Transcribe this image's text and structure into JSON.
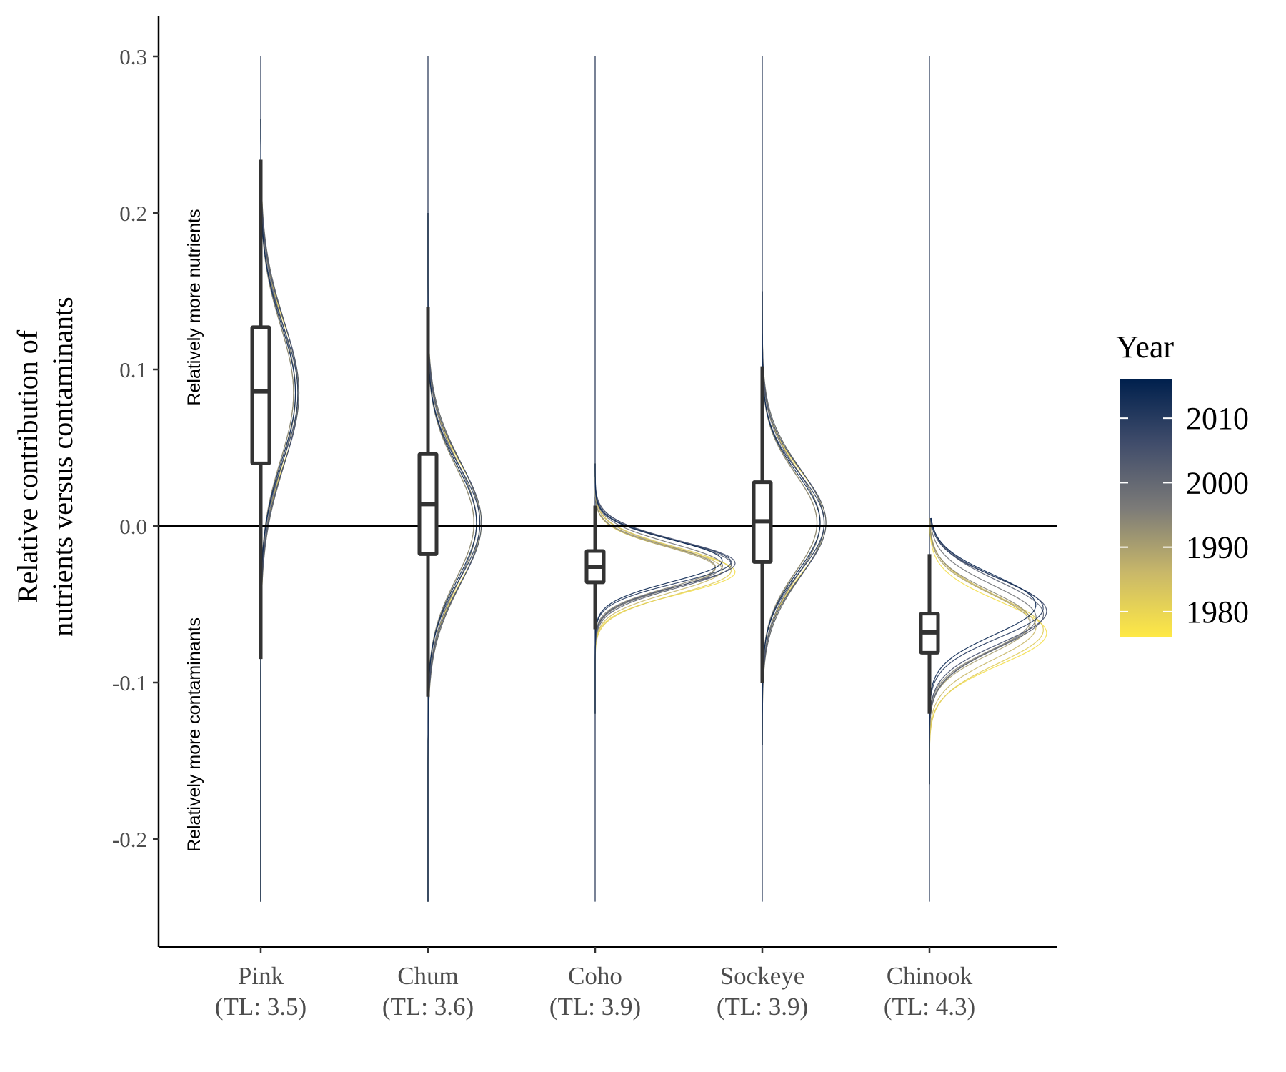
{
  "chart_data": {
    "type": "violin",
    "title": "",
    "xlabel": "",
    "ylabel_lines": [
      "Relative contribution of",
      "nutrients versus contaminants"
    ],
    "ylim": [
      -0.26,
      0.325
    ],
    "yticks": [
      -0.2,
      -0.1,
      0.0,
      0.1,
      0.2,
      0.3
    ],
    "ytick_labels": [
      "-0.2",
      "-0.1",
      "0.0",
      "0.1",
      "0.2",
      "0.3"
    ],
    "reference_line_y": 0.0,
    "grid": false,
    "annotations": {
      "upper": "Relatively more nutrients",
      "lower": "Relatively more contaminants"
    },
    "categories": [
      {
        "name": "Pink",
        "tl": "(TL: 3.5)",
        "box": {
          "whisker_low": -0.085,
          "q1": 0.04,
          "median": 0.086,
          "q3": 0.127,
          "whisker_high": 0.234
        },
        "density": {
          "mean": 0.085,
          "sd": 0.045,
          "amp": 0.3,
          "drift": 0.0,
          "span": [
            -0.24,
            0.26
          ]
        }
      },
      {
        "name": "Chum",
        "tl": "(TL: 3.6)",
        "box": {
          "whisker_low": -0.109,
          "q1": -0.018,
          "median": 0.014,
          "q3": 0.046,
          "whisker_high": 0.14
        },
        "density": {
          "mean": 0.002,
          "sd": 0.038,
          "amp": 0.42,
          "drift": 0.0,
          "span": [
            -0.24,
            0.2
          ]
        }
      },
      {
        "name": "Coho",
        "tl": "(TL: 3.9)",
        "box": {
          "whisker_low": -0.066,
          "q1": -0.036,
          "median": -0.026,
          "q3": -0.016,
          "whisker_high": 0.013
        },
        "density": {
          "mean": -0.026,
          "sd": 0.014,
          "amp": 1.1,
          "drift": 0.004,
          "span": [
            -0.12,
            0.04
          ]
        }
      },
      {
        "name": "Sockeye",
        "tl": "(TL: 3.9)",
        "box": {
          "whisker_low": -0.1,
          "q1": -0.023,
          "median": 0.003,
          "q3": 0.028,
          "whisker_high": 0.102
        },
        "density": {
          "mean": 0.002,
          "sd": 0.033,
          "amp": 0.5,
          "drift": 0.0,
          "span": [
            -0.14,
            0.15
          ]
        }
      },
      {
        "name": "Chinook",
        "tl": "(TL: 4.3)",
        "box": {
          "whisker_low": -0.12,
          "q1": -0.081,
          "median": -0.068,
          "q3": -0.056,
          "whisker_high": -0.018
        },
        "density": {
          "mean": -0.06,
          "sd": 0.02,
          "amp": 0.92,
          "drift": 0.01,
          "span": [
            -0.165,
            0.005
          ]
        }
      }
    ],
    "legend": {
      "title": "Year",
      "position": "right",
      "colormap": "cividis",
      "range": [
        1976,
        2016
      ],
      "labels": [
        "2010",
        "2000",
        "1990",
        "1980"
      ],
      "label_values": [
        2010,
        2000,
        1990,
        1980
      ],
      "colors": {
        "low": "#ffe945",
        "mid": "#7c7b78",
        "high": "#00204d"
      }
    },
    "years": [
      1978,
      1982,
      1986,
      1990,
      1994,
      1998,
      2002,
      2006,
      2010,
      2014
    ]
  }
}
